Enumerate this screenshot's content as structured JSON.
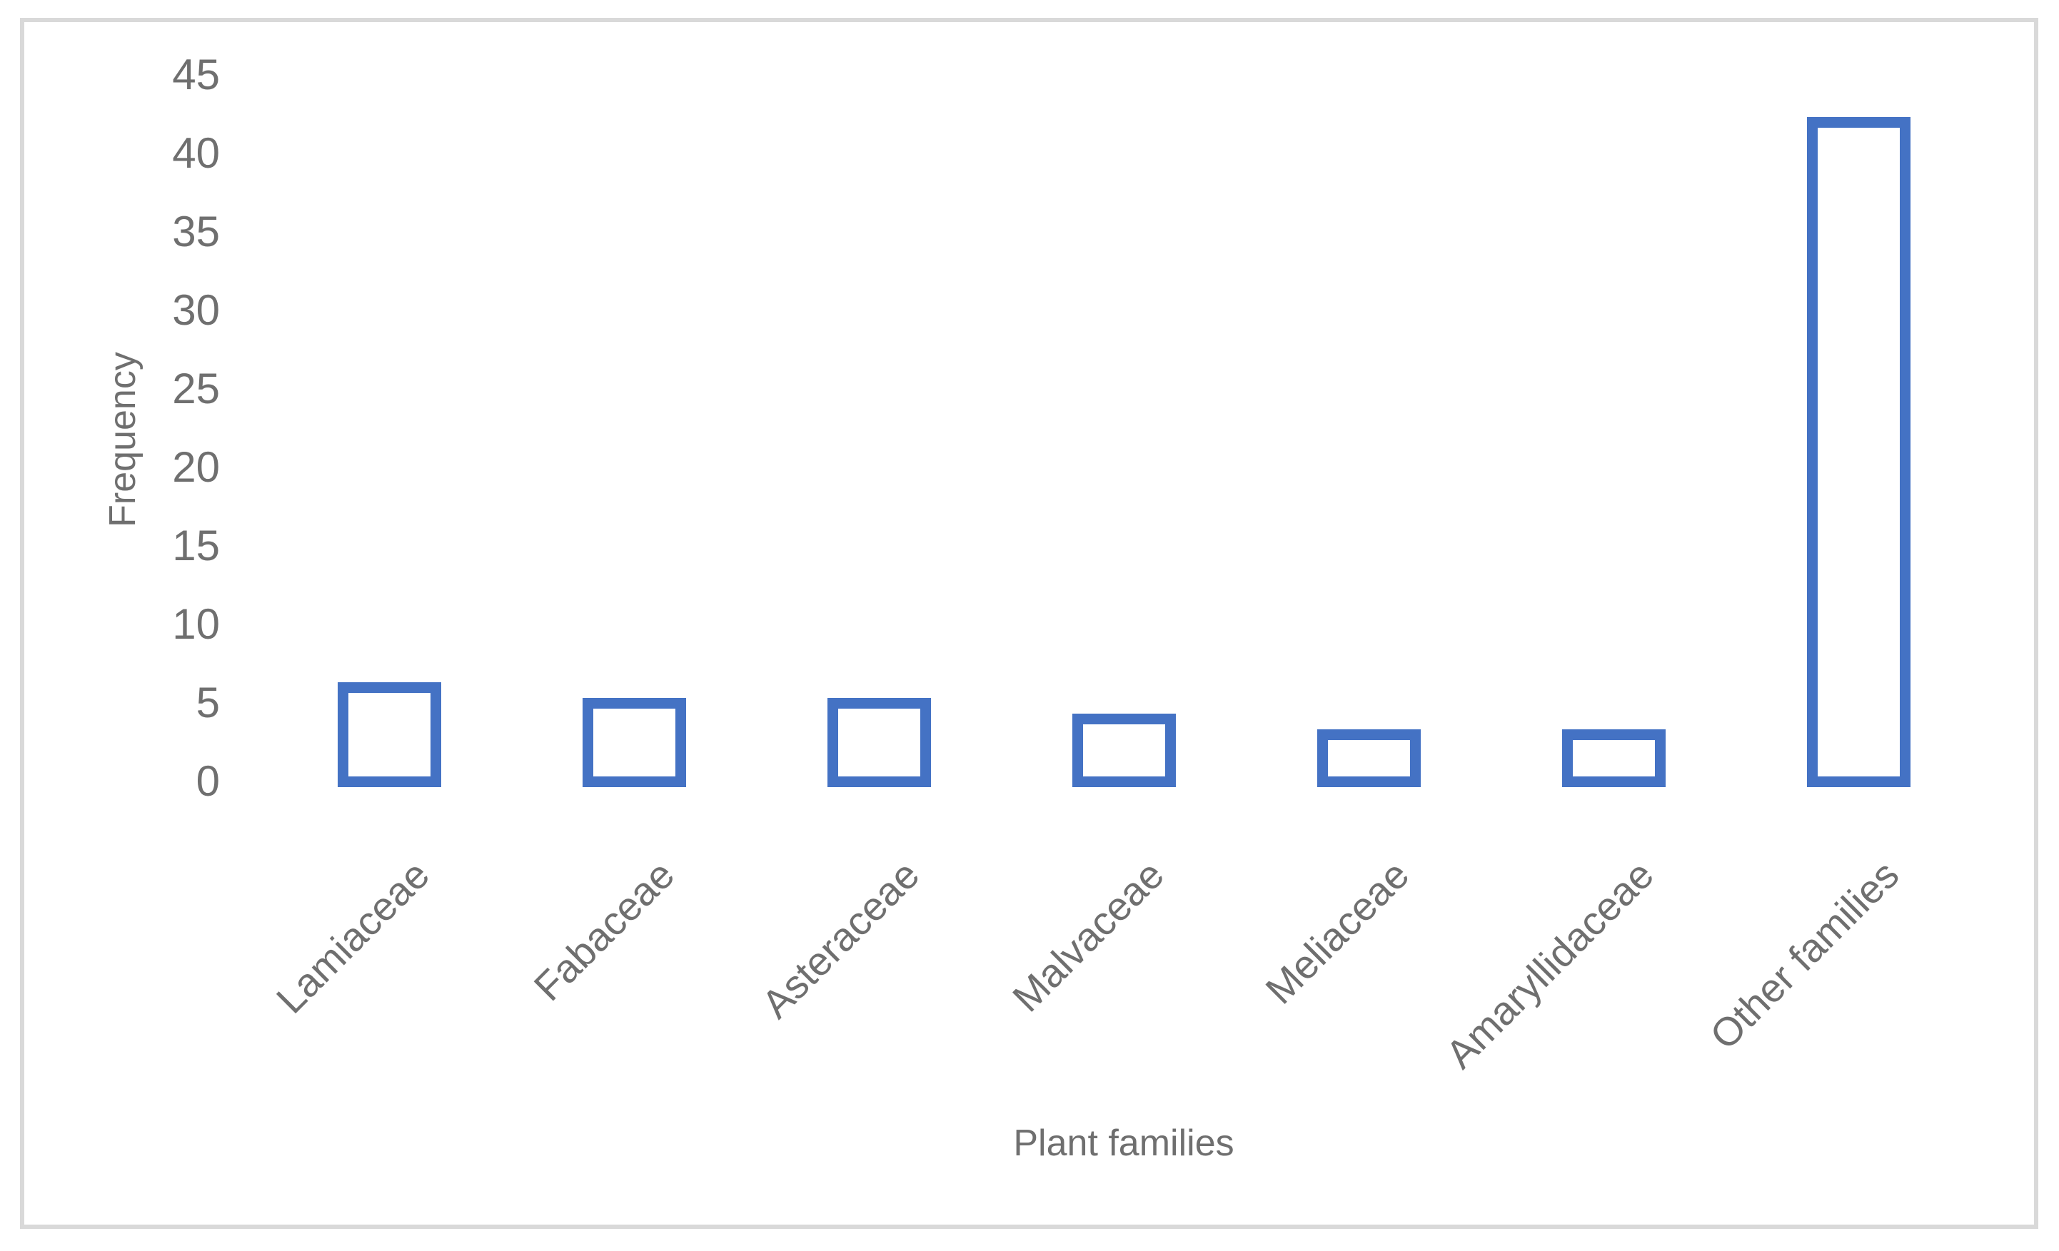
{
  "chart_data": {
    "type": "bar",
    "title": "",
    "categories": [
      "Lamiaceae",
      "Fabaceae",
      "Asteraceae",
      "Malvaceae",
      "Meliaceae",
      "Amaryllidaceae",
      "Other families"
    ],
    "values": [
      6,
      5,
      5,
      4,
      3,
      3,
      42
    ],
    "xlabel": "Plant families",
    "ylabel": "Frequency",
    "ylim": [
      0,
      45
    ],
    "yticks": [
      0,
      5,
      10,
      15,
      20,
      25,
      30,
      35,
      40,
      45
    ],
    "grid": false,
    "legend": "none",
    "bar_fill": "#FFFFFF",
    "bar_stroke": "#4472C4"
  },
  "colors": {
    "bar_stroke": "#4472C4",
    "bar_fill": "#FFFFFF",
    "axis_text": "#6F6F6F",
    "frame_border": "#D9D9D9",
    "background": "#FFFFFF"
  }
}
